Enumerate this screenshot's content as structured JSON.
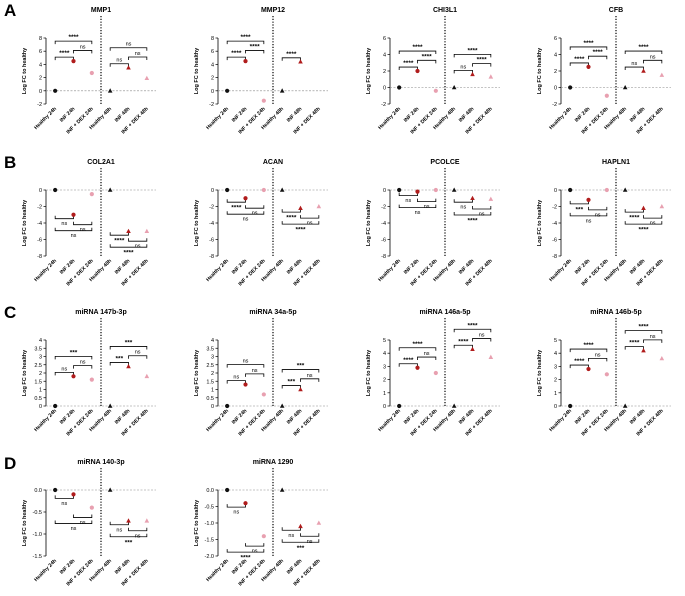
{
  "panel_letters": [
    "A",
    "B",
    "C",
    "D"
  ],
  "x_tick_labels": [
    "Healthy 24h",
    "INF 24h",
    "INF + DEX 24h",
    "Healthy 48h",
    "INF 48h",
    "INF + DEX 48h"
  ],
  "y_axis_label": "Log FC to healthy",
  "colors": {
    "healthy": "#111111",
    "inf": "#b01c1c",
    "infdex": "#e8a0b0",
    "line": "#000000",
    "ref_dash": "#888888"
  },
  "marker_shapes": {
    "24h": "circle",
    "48h": "triangle"
  },
  "chart_data": [
    {
      "type": "scatter",
      "row": "A",
      "title": "MMP1",
      "ylim": [
        -2,
        8
      ],
      "yticks": [
        -2,
        0,
        2,
        4,
        6,
        8
      ],
      "values": [
        0,
        4.5,
        2.7,
        0,
        3.5,
        1.9
      ],
      "brackets": [
        {
          "group": "24h",
          "from": "Healthy 24h",
          "to": "INF 24h",
          "label": "****"
        },
        {
          "group": "24h",
          "from": "INF 24h",
          "to": "INF + DEX 24h",
          "label": "ns"
        },
        {
          "group": "24h",
          "from": "Healthy 24h",
          "to": "INF + DEX 24h",
          "label": "****"
        },
        {
          "group": "48h",
          "from": "Healthy 48h",
          "to": "INF 48h",
          "label": "ns"
        },
        {
          "group": "48h",
          "from": "INF 48h",
          "to": "INF + DEX 48h",
          "label": "ns"
        },
        {
          "group": "48h",
          "from": "Healthy 48h",
          "to": "INF + DEX 48h",
          "label": "ns"
        }
      ]
    },
    {
      "type": "scatter",
      "row": "A",
      "title": "MMP12",
      "ylim": [
        -2,
        8
      ],
      "yticks": [
        -2,
        0,
        2,
        4,
        6,
        8
      ],
      "values": [
        0,
        4.5,
        -1.5,
        0,
        4.4,
        null
      ],
      "brackets": [
        {
          "group": "24h",
          "from": "Healthy 24h",
          "to": "INF 24h",
          "label": "****"
        },
        {
          "group": "24h",
          "from": "INF 24h",
          "to": "INF + DEX 24h",
          "label": "****"
        },
        {
          "group": "24h",
          "from": "Healthy 24h",
          "to": "INF + DEX 24h",
          "label": "****"
        },
        {
          "group": "48h",
          "from": "Healthy 48h",
          "to": "INF 48h",
          "label": "****"
        }
      ]
    },
    {
      "type": "scatter",
      "row": "A",
      "title": "CHI3L1",
      "ylim": [
        -2,
        6
      ],
      "yticks": [
        -2,
        0,
        2,
        4,
        6
      ],
      "values": [
        0,
        2.0,
        -0.4,
        0,
        1.6,
        1.3
      ],
      "brackets": [
        {
          "group": "24h",
          "from": "Healthy 24h",
          "to": "INF 24h",
          "label": "****"
        },
        {
          "group": "24h",
          "from": "INF 24h",
          "to": "INF + DEX 24h",
          "label": "****"
        },
        {
          "group": "24h",
          "from": "Healthy 24h",
          "to": "INF + DEX 24h",
          "label": "****"
        },
        {
          "group": "48h",
          "from": "Healthy 48h",
          "to": "INF 48h",
          "label": "ns"
        },
        {
          "group": "48h",
          "from": "INF 48h",
          "to": "INF + DEX 48h",
          "label": "****"
        },
        {
          "group": "48h",
          "from": "Healthy 48h",
          "to": "INF + DEX 48h",
          "label": "****"
        }
      ]
    },
    {
      "type": "scatter",
      "row": "A",
      "title": "CFB",
      "ylim": [
        -2,
        6
      ],
      "yticks": [
        -2,
        0,
        2,
        4,
        6
      ],
      "values": [
        0,
        2.5,
        -1.0,
        0,
        2.0,
        1.5
      ],
      "brackets": [
        {
          "group": "24h",
          "from": "Healthy 24h",
          "to": "INF 24h",
          "label": "****"
        },
        {
          "group": "24h",
          "from": "INF 24h",
          "to": "INF + DEX 24h",
          "label": "****"
        },
        {
          "group": "24h",
          "from": "Healthy 24h",
          "to": "INF + DEX 24h",
          "label": "****"
        },
        {
          "group": "48h",
          "from": "Healthy 48h",
          "to": "INF 48h",
          "label": "ns"
        },
        {
          "group": "48h",
          "from": "INF 48h",
          "to": "INF + DEX 48h",
          "label": "ns"
        },
        {
          "group": "48h",
          "from": "Healthy 48h",
          "to": "INF + DEX 48h",
          "label": "****"
        }
      ]
    },
    {
      "type": "scatter",
      "row": "B",
      "title": "COL2A1",
      "ylim": [
        -8,
        0
      ],
      "yticks": [
        -8,
        -6,
        -4,
        -2,
        0
      ],
      "values": [
        0,
        -3.0,
        -0.5,
        0,
        -5.0,
        -5.0
      ],
      "brackets": [
        {
          "group": "24h",
          "from": "Healthy 24h",
          "to": "INF 24h",
          "label": "ns"
        },
        {
          "group": "24h",
          "from": "INF 24h",
          "to": "INF + DEX 24h",
          "label": "ns"
        },
        {
          "group": "24h",
          "from": "Healthy 24h",
          "to": "INF + DEX 24h",
          "label": "ns"
        },
        {
          "group": "48h",
          "from": "Healthy 48h",
          "to": "INF 48h",
          "label": "****"
        },
        {
          "group": "48h",
          "from": "INF 48h",
          "to": "INF + DEX 48h",
          "label": "ns"
        },
        {
          "group": "48h",
          "from": "Healthy 48h",
          "to": "INF + DEX 48h",
          "label": "****"
        }
      ]
    },
    {
      "type": "scatter",
      "row": "B",
      "title": "ACAN",
      "ylim": [
        -8,
        0
      ],
      "yticks": [
        -8,
        -6,
        -4,
        -2,
        0
      ],
      "values": [
        0,
        -1.0,
        0,
        0,
        -2.2,
        -2.0
      ],
      "brackets": [
        {
          "group": "24h",
          "from": "Healthy 24h",
          "to": "INF 24h",
          "label": "****"
        },
        {
          "group": "24h",
          "from": "INF 24h",
          "to": "INF + DEX 24h",
          "label": "ns"
        },
        {
          "group": "24h",
          "from": "Healthy 24h",
          "to": "INF + DEX 24h",
          "label": "ns"
        },
        {
          "group": "48h",
          "from": "Healthy 48h",
          "to": "INF 48h",
          "label": "****"
        },
        {
          "group": "48h",
          "from": "INF 48h",
          "to": "INF + DEX 48h",
          "label": "ns"
        },
        {
          "group": "48h",
          "from": "Healthy 48h",
          "to": "INF + DEX 48h",
          "label": "****"
        }
      ]
    },
    {
      "type": "scatter",
      "row": "B",
      "title": "PCOLCE",
      "ylim": [
        -8,
        0
      ],
      "yticks": [
        -8,
        -6,
        -4,
        -2,
        0
      ],
      "values": [
        0,
        -0.2,
        0,
        0,
        -1.0,
        -1.1
      ],
      "brackets": [
        {
          "group": "24h",
          "from": "Healthy 24h",
          "to": "INF 24h",
          "label": "ns"
        },
        {
          "group": "24h",
          "from": "INF 24h",
          "to": "INF + DEX 24h",
          "label": "ns"
        },
        {
          "group": "24h",
          "from": "Healthy 24h",
          "to": "INF + DEX 24h",
          "label": "ns"
        },
        {
          "group": "48h",
          "from": "Healthy 48h",
          "to": "INF 48h",
          "label": "ns"
        },
        {
          "group": "48h",
          "from": "INF 48h",
          "to": "INF + DEX 48h",
          "label": "ns"
        },
        {
          "group": "48h",
          "from": "Healthy 48h",
          "to": "INF + DEX 48h",
          "label": "****"
        }
      ]
    },
    {
      "type": "scatter",
      "row": "B",
      "title": "HAPLN1",
      "ylim": [
        -8,
        0
      ],
      "yticks": [
        -8,
        -6,
        -4,
        -2,
        0
      ],
      "values": [
        0,
        -1.2,
        0,
        0,
        -2.2,
        -2.0
      ],
      "brackets": [
        {
          "group": "24h",
          "from": "Healthy 24h",
          "to": "INF 24h",
          "label": "***"
        },
        {
          "group": "24h",
          "from": "INF 24h",
          "to": "INF + DEX 24h",
          "label": "ns"
        },
        {
          "group": "24h",
          "from": "Healthy 24h",
          "to": "INF + DEX 24h",
          "label": "ns"
        },
        {
          "group": "48h",
          "from": "Healthy 48h",
          "to": "INF 48h",
          "label": "****"
        },
        {
          "group": "48h",
          "from": "INF 48h",
          "to": "INF + DEX 48h",
          "label": "ns"
        },
        {
          "group": "48h",
          "from": "Healthy 48h",
          "to": "INF + DEX 48h",
          "label": "****"
        }
      ]
    },
    {
      "type": "scatter",
      "row": "C",
      "title": "miRNA 147b-3p",
      "ylim": [
        0,
        4
      ],
      "yticks": [
        0,
        0.5,
        1,
        1.5,
        2,
        2.5,
        3,
        3.5,
        4
      ],
      "values": [
        0,
        1.8,
        1.6,
        0,
        2.4,
        1.8
      ],
      "brackets": [
        {
          "group": "24h",
          "from": "Healthy 24h",
          "to": "INF 24h",
          "label": "ns"
        },
        {
          "group": "24h",
          "from": "INF 24h",
          "to": "INF + DEX 24h",
          "label": "ns"
        },
        {
          "group": "24h",
          "from": "Healthy 24h",
          "to": "INF + DEX 24h",
          "label": "***"
        },
        {
          "group": "48h",
          "from": "Healthy 48h",
          "to": "INF 48h",
          "label": "***"
        },
        {
          "group": "48h",
          "from": "INF 48h",
          "to": "INF + DEX 48h",
          "label": "ns"
        },
        {
          "group": "48h",
          "from": "Healthy 48h",
          "to": "INF + DEX 48h",
          "label": "***"
        }
      ]
    },
    {
      "type": "scatter",
      "row": "C",
      "title": "miRNA 34a-5p",
      "ylim": [
        0,
        4
      ],
      "yticks": [
        0,
        0.5,
        1,
        1.5,
        2,
        2.5,
        3,
        3.5,
        4
      ],
      "values": [
        0,
        1.3,
        0.7,
        0,
        1.0,
        null
      ],
      "brackets": [
        {
          "group": "24h",
          "from": "Healthy 24h",
          "to": "INF 24h",
          "label": "ns"
        },
        {
          "group": "24h",
          "from": "INF 24h",
          "to": "INF + DEX 24h",
          "label": "ns"
        },
        {
          "group": "24h",
          "from": "Healthy 24h",
          "to": "INF + DEX 24h",
          "label": "ns"
        },
        {
          "group": "48h",
          "from": "Healthy 48h",
          "to": "INF 48h",
          "label": "***"
        },
        {
          "group": "48h",
          "from": "INF 48h",
          "to": "INF + DEX 48h",
          "label": "ns"
        },
        {
          "group": "48h",
          "from": "Healthy 48h",
          "to": "INF + DEX 48h",
          "label": "***"
        }
      ]
    },
    {
      "type": "scatter",
      "row": "C",
      "title": "miRNA 146a-5p",
      "ylim": [
        0,
        5
      ],
      "yticks": [
        0,
        1,
        2,
        3,
        4,
        5
      ],
      "values": [
        0,
        2.9,
        2.5,
        0,
        4.3,
        3.7
      ],
      "brackets": [
        {
          "group": "24h",
          "from": "Healthy 24h",
          "to": "INF 24h",
          "label": "****"
        },
        {
          "group": "24h",
          "from": "INF 24h",
          "to": "INF + DEX 24h",
          "label": "ns"
        },
        {
          "group": "24h",
          "from": "Healthy 24h",
          "to": "INF + DEX 24h",
          "label": "****"
        },
        {
          "group": "48h",
          "from": "Healthy 48h",
          "to": "INF 48h",
          "label": "****"
        },
        {
          "group": "48h",
          "from": "INF 48h",
          "to": "INF + DEX 48h",
          "label": "ns"
        },
        {
          "group": "48h",
          "from": "Healthy 48h",
          "to": "INF + DEX 48h",
          "label": "****"
        }
      ]
    },
    {
      "type": "scatter",
      "row": "C",
      "title": "miRNA 146b-5p",
      "ylim": [
        0,
        5
      ],
      "yticks": [
        0,
        1,
        2,
        3,
        4,
        5
      ],
      "values": [
        0,
        2.8,
        2.4,
        0,
        4.2,
        3.6
      ],
      "brackets": [
        {
          "group": "24h",
          "from": "Healthy 24h",
          "to": "INF 24h",
          "label": "****"
        },
        {
          "group": "24h",
          "from": "INF 24h",
          "to": "INF + DEX 24h",
          "label": "ns"
        },
        {
          "group": "24h",
          "from": "Healthy 24h",
          "to": "INF + DEX 24h",
          "label": "****"
        },
        {
          "group": "48h",
          "from": "Healthy 48h",
          "to": "INF 48h",
          "label": "****"
        },
        {
          "group": "48h",
          "from": "INF 48h",
          "to": "INF + DEX 48h",
          "label": "ns"
        },
        {
          "group": "48h",
          "from": "Healthy 48h",
          "to": "INF + DEX 48h",
          "label": "****"
        }
      ]
    },
    {
      "type": "scatter",
      "row": "D",
      "title": "miRNA 140-3p",
      "ylim": [
        -1.5,
        0
      ],
      "yticks": [
        -1.5,
        -1.0,
        -0.5,
        0.0
      ],
      "values": [
        0,
        -0.1,
        -0.4,
        0,
        -0.7,
        -0.7
      ],
      "brackets": [
        {
          "group": "24h",
          "from": "Healthy 24h",
          "to": "INF 24h",
          "label": "ns"
        },
        {
          "group": "24h",
          "from": "INF 24h",
          "to": "INF + DEX 24h",
          "label": "ns"
        },
        {
          "group": "24h",
          "from": "Healthy 24h",
          "to": "INF + DEX 24h",
          "label": "ns"
        },
        {
          "group": "48h",
          "from": "Healthy 48h",
          "to": "INF 48h",
          "label": "ns"
        },
        {
          "group": "48h",
          "from": "INF 48h",
          "to": "INF + DEX 48h",
          "label": "ns"
        },
        {
          "group": "48h",
          "from": "Healthy 48h",
          "to": "INF + DEX 48h",
          "label": "***"
        }
      ]
    },
    {
      "type": "scatter",
      "row": "D",
      "title": "miRNA 1290",
      "ylim": [
        -2.0,
        0
      ],
      "yticks": [
        -2.0,
        -1.5,
        -1.0,
        -0.5,
        0.0
      ],
      "values": [
        0,
        -0.4,
        -1.4,
        0,
        -1.1,
        -1.0
      ],
      "brackets": [
        {
          "group": "24h",
          "from": "Healthy 24h",
          "to": "INF 24h",
          "label": "ns"
        },
        {
          "group": "24h",
          "from": "INF 24h",
          "to": "INF + DEX 24h",
          "label": "ns"
        },
        {
          "group": "24h",
          "from": "Healthy 24h",
          "to": "INF + DEX 24h",
          "label": "****"
        },
        {
          "group": "48h",
          "from": "Healthy 48h",
          "to": "INF 48h",
          "label": "ns"
        },
        {
          "group": "48h",
          "from": "INF 48h",
          "to": "INF + DEX 48h",
          "label": "ns"
        },
        {
          "group": "48h",
          "from": "Healthy 48h",
          "to": "INF + DEX 48h",
          "label": "***"
        }
      ]
    }
  ]
}
